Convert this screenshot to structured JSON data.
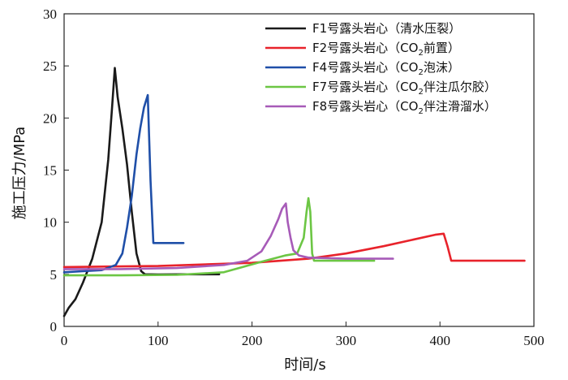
{
  "chart_data": {
    "type": "line",
    "xlabel": "时间/s",
    "ylabel": "施工压力/MPa",
    "xlim": [
      0,
      500
    ],
    "ylim": [
      0,
      30
    ],
    "xticks": [
      0,
      100,
      200,
      300,
      400,
      500
    ],
    "yticks": [
      0,
      5,
      10,
      15,
      20,
      25,
      30
    ],
    "grid": false,
    "legend_position": "top-right",
    "series": [
      {
        "name": "F1号露头岩心（清水压裂）",
        "legend_parts": [
          "F1号露头岩心（清水压裂）"
        ],
        "color": "#1a1a1a",
        "points": [
          [
            0,
            1
          ],
          [
            5,
            1.8
          ],
          [
            12,
            2.6
          ],
          [
            20,
            4.2
          ],
          [
            30,
            6.5
          ],
          [
            40,
            10
          ],
          [
            47,
            16
          ],
          [
            51,
            21
          ],
          [
            54,
            24.8
          ],
          [
            57,
            22
          ],
          [
            62,
            19
          ],
          [
            67,
            15.5
          ],
          [
            72,
            11
          ],
          [
            77,
            7
          ],
          [
            82,
            5.3
          ],
          [
            86,
            5
          ],
          [
            100,
            4.98
          ],
          [
            130,
            5
          ],
          [
            165,
            5
          ]
        ]
      },
      {
        "name": "F2号露头岩心（CO2前置）",
        "legend_parts": [
          "F2号露头岩心（CO",
          "2",
          "前置）"
        ],
        "color": "#e8232b",
        "points": [
          [
            0,
            5.7
          ],
          [
            100,
            5.8
          ],
          [
            200,
            6.1
          ],
          [
            260,
            6.5
          ],
          [
            300,
            7
          ],
          [
            340,
            7.7
          ],
          [
            370,
            8.3
          ],
          [
            395,
            8.8
          ],
          [
            404,
            8.9
          ],
          [
            408,
            7.7
          ],
          [
            412,
            6.3
          ],
          [
            420,
            6.3
          ],
          [
            490,
            6.3
          ]
        ]
      },
      {
        "name": "F4号露头岩心（CO2泡沫）",
        "legend_parts": [
          "F4号露头岩心（CO",
          "2",
          "泡沫）"
        ],
        "color": "#1f4fa8",
        "points": [
          [
            0,
            5.2
          ],
          [
            20,
            5.3
          ],
          [
            40,
            5.4
          ],
          [
            55,
            5.9
          ],
          [
            62,
            7
          ],
          [
            67,
            9.5
          ],
          [
            72,
            12.5
          ],
          [
            77,
            16.5
          ],
          [
            81,
            19
          ],
          [
            85,
            21
          ],
          [
            89,
            22.2
          ],
          [
            92,
            14
          ],
          [
            95,
            8
          ],
          [
            110,
            8
          ],
          [
            127,
            8
          ]
        ]
      },
      {
        "name": "F7号露头岩心（CO2伴注瓜尔胶）",
        "legend_parts": [
          "F7号露头岩心（CO",
          "2",
          "伴注瓜尔胶）"
        ],
        "color": "#6cc644",
        "points": [
          [
            0,
            4.9
          ],
          [
            60,
            4.9
          ],
          [
            120,
            4.95
          ],
          [
            170,
            5.2
          ],
          [
            190,
            5.7
          ],
          [
            210,
            6.2
          ],
          [
            235,
            6.8
          ],
          [
            248,
            7
          ],
          [
            255,
            8.5
          ],
          [
            258,
            11
          ],
          [
            260,
            12.3
          ],
          [
            262,
            11
          ],
          [
            264,
            7
          ],
          [
            266,
            6.3
          ],
          [
            300,
            6.3
          ],
          [
            330,
            6.3
          ]
        ]
      },
      {
        "name": "F8号露头岩心（CO2伴注滑溜水）",
        "legend_parts": [
          "F8号露头岩心（CO",
          "2",
          "伴注滑溜水）"
        ],
        "color": "#a75bb8",
        "points": [
          [
            0,
            5.5
          ],
          [
            60,
            5.5
          ],
          [
            120,
            5.6
          ],
          [
            170,
            5.9
          ],
          [
            195,
            6.3
          ],
          [
            210,
            7.2
          ],
          [
            220,
            8.7
          ],
          [
            228,
            10.3
          ],
          [
            232,
            11.3
          ],
          [
            236,
            11.8
          ],
          [
            238,
            10
          ],
          [
            241,
            8.5
          ],
          [
            244,
            7.3
          ],
          [
            250,
            6.8
          ],
          [
            260,
            6.6
          ],
          [
            300,
            6.5
          ],
          [
            350,
            6.5
          ]
        ]
      }
    ]
  }
}
